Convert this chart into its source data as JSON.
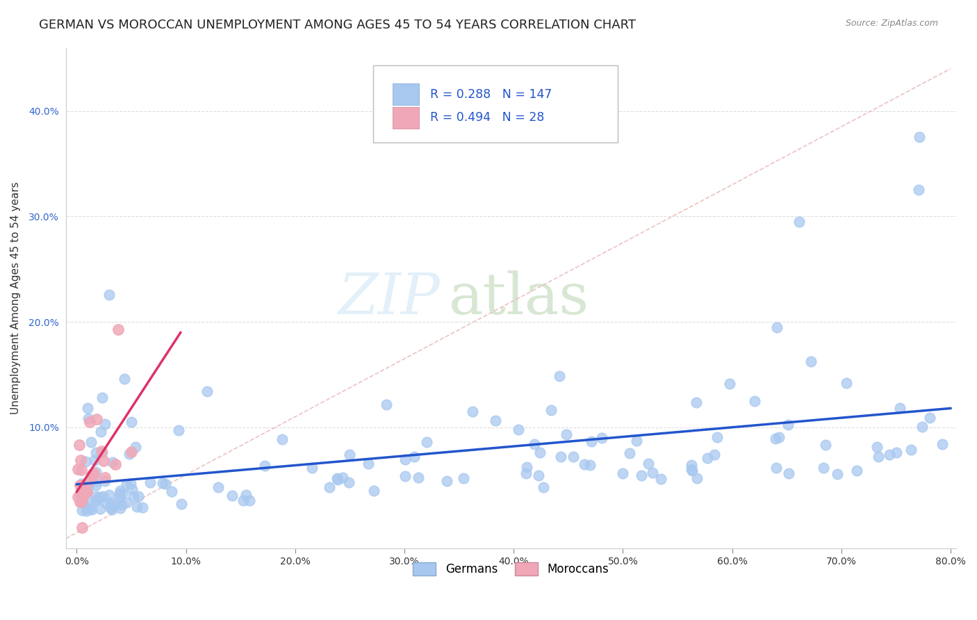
{
  "title": "GERMAN VS MOROCCAN UNEMPLOYMENT AMONG AGES 45 TO 54 YEARS CORRELATION CHART",
  "source": "Source: ZipAtlas.com",
  "ylabel": "Unemployment Among Ages 45 to 54 years",
  "xlim": [
    -0.01,
    0.805
  ],
  "ylim": [
    -0.015,
    0.46
  ],
  "xtick_vals": [
    0.0,
    0.1,
    0.2,
    0.3,
    0.4,
    0.5,
    0.6,
    0.7,
    0.8
  ],
  "ytick_vals": [
    0.1,
    0.2,
    0.3,
    0.4
  ],
  "ytick_labels": [
    "10.0%",
    "20.0%",
    "30.0%",
    "40.0%"
  ],
  "xtick_labels": [
    "0.0%",
    "10.0%",
    "20.0%",
    "30.0%",
    "40.0%",
    "50.0%",
    "60.0%",
    "70.0%",
    "80.0%"
  ],
  "german_R": 0.288,
  "german_N": 147,
  "moroccan_R": 0.494,
  "moroccan_N": 28,
  "german_color": "#a8c8f0",
  "moroccan_color": "#f0a8b8",
  "german_line_color": "#2255cc",
  "moroccan_line_color": "#dd3366",
  "diagonal_color": "#e8b8b8",
  "background_color": "#ffffff",
  "grid_color": "#dddddd",
  "title_fontsize": 13,
  "axis_label_fontsize": 11,
  "tick_fontsize": 10,
  "seed": 42
}
